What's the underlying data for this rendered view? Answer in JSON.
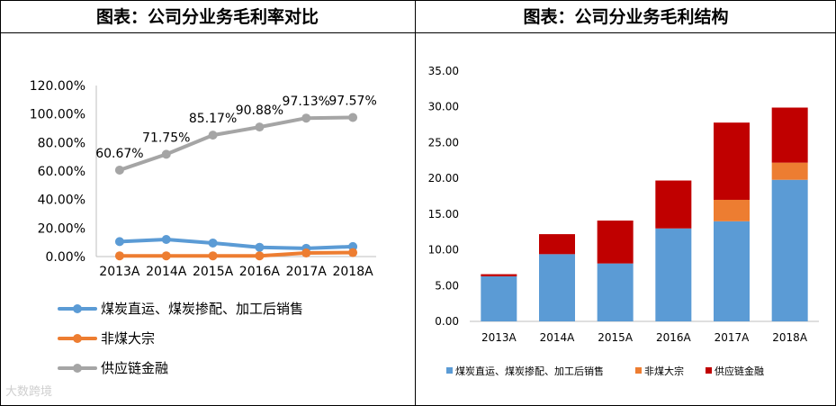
{
  "left_panel": {
    "title": "图表：公司分业务毛利率对比"
  },
  "right_panel": {
    "title": "图表：公司分业务毛利结构"
  },
  "watermark": "大数跨境",
  "chart_data": [
    {
      "type": "line",
      "title": "图表：公司分业务毛利率对比",
      "categories": [
        "2013A",
        "2014A",
        "2015A",
        "2016A",
        "2017A",
        "2018A"
      ],
      "ylim": [
        0,
        120
      ],
      "yticks": [
        "0.00%",
        "20.00%",
        "40.00%",
        "60.00%",
        "80.00%",
        "100.00%",
        "120.00%"
      ],
      "legend_position": "bottom",
      "series": [
        {
          "name": "煤炭直运、煤炭掺配、加工后销售",
          "color": "#5b9bd5",
          "values": [
            10.5,
            12.0,
            9.5,
            6.5,
            5.8,
            7.0
          ]
        },
        {
          "name": "非煤大宗",
          "color": "#ed7d31",
          "values": [
            0.5,
            0.5,
            0.5,
            0.5,
            2.5,
            2.8
          ]
        },
        {
          "name": "供应链金融",
          "color": "#a5a5a5",
          "values": [
            60.67,
            71.75,
            85.17,
            90.88,
            97.13,
            97.57
          ],
          "labels": [
            "60.67%",
            "71.75%",
            "85.17%",
            "90.88%",
            "97.13%",
            "97.57%"
          ]
        }
      ]
    },
    {
      "type": "bar",
      "stacked": true,
      "title": "图表：公司分业务毛利结构",
      "categories": [
        "2013A",
        "2014A",
        "2015A",
        "2016A",
        "2017A",
        "2018A"
      ],
      "ylim": [
        0,
        35
      ],
      "yticks": [
        "0.00",
        "5.00",
        "10.00",
        "15.00",
        "20.00",
        "25.00",
        "30.00",
        "35.00"
      ],
      "legend_position": "bottom",
      "series": [
        {
          "name": "煤炭直运、煤炭掺配、加工后销售",
          "color": "#5b9bd5",
          "values": [
            6.3,
            9.4,
            8.1,
            13.0,
            14.0,
            19.8
          ]
        },
        {
          "name": "非煤大宗",
          "color": "#ed7d31",
          "values": [
            0.0,
            0.0,
            0.0,
            0.0,
            3.0,
            2.4
          ]
        },
        {
          "name": "供应链金融",
          "color": "#c00000",
          "values": [
            0.3,
            2.8,
            6.0,
            6.7,
            10.8,
            7.7
          ]
        }
      ]
    }
  ]
}
